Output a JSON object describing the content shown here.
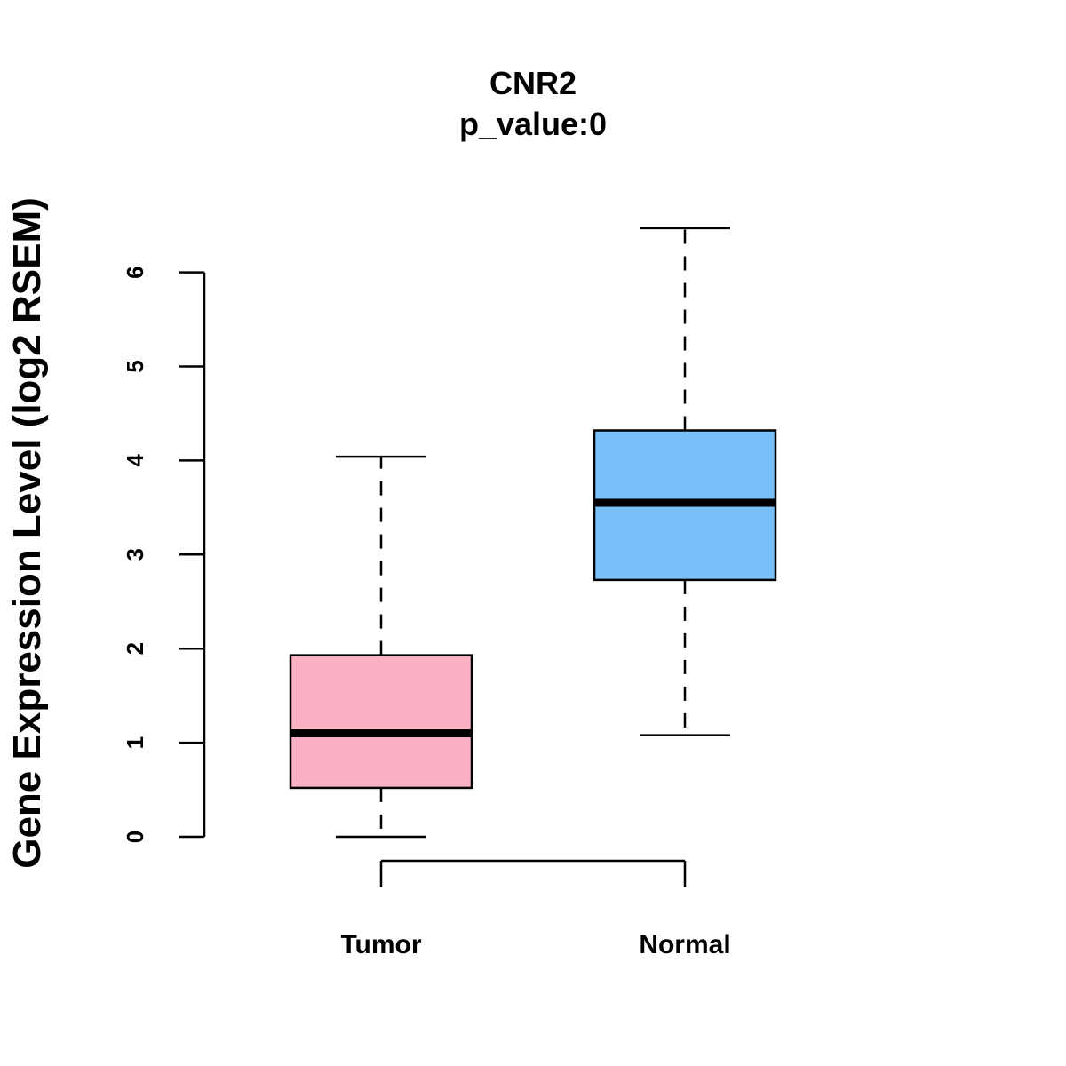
{
  "chart_data": {
    "type": "boxplot",
    "title": "CNR2",
    "subtitle": "p_value:0",
    "xlabel": "",
    "ylabel": "Gene Expression Level (log2 RSEM)",
    "ylim": [
      0,
      6
    ],
    "yticks": [
      "0",
      "1",
      "2",
      "3",
      "4",
      "5",
      "6"
    ],
    "categories": [
      "Tumor",
      "Normal"
    ],
    "series": [
      {
        "name": "Tumor",
        "color": "#fbb1c4",
        "min": 0.0,
        "q1": 0.52,
        "median": 1.1,
        "q3": 1.93,
        "max": 4.04
      },
      {
        "name": "Normal",
        "color": "#78c0f7",
        "min": 1.08,
        "q1": 2.73,
        "median": 3.55,
        "q3": 4.32,
        "max": 6.47
      }
    ]
  }
}
